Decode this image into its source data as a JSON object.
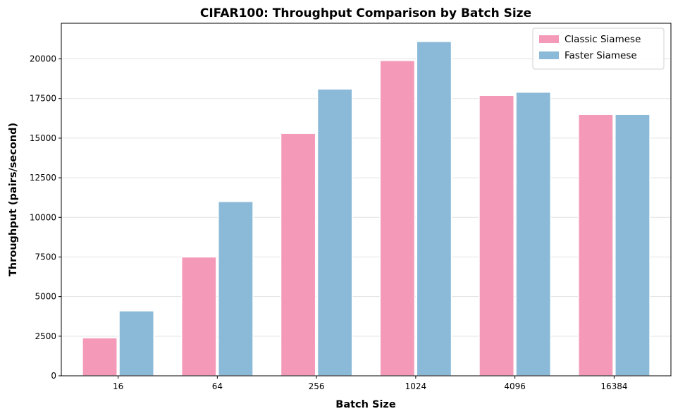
{
  "chart_data": {
    "type": "bar",
    "title": "CIFAR100: Throughput Comparison by Batch Size",
    "xlabel": "Batch Size",
    "ylabel": "Throughput (pairs/second)",
    "categories": [
      "16",
      "64",
      "256",
      "1024",
      "4096",
      "16384"
    ],
    "series": [
      {
        "name": "Classic Siamese",
        "color": "#f49ab8",
        "values": [
          2400,
          7500,
          15300,
          19900,
          17700,
          16500
        ]
      },
      {
        "name": "Faster Siamese",
        "color": "#8bbad8",
        "values": [
          4100,
          11000,
          18100,
          21100,
          17900,
          16500
        ]
      }
    ],
    "ylim": [
      0,
      22250
    ],
    "yticks": [
      0,
      2500,
      5000,
      7500,
      10000,
      12500,
      15000,
      17500,
      20000
    ],
    "ytick_labels": [
      "0",
      "2500",
      "5000",
      "7500",
      "10000",
      "12500",
      "15000",
      "17500",
      "20000"
    ],
    "grid": "horizontal",
    "legend_position": "top-right"
  }
}
